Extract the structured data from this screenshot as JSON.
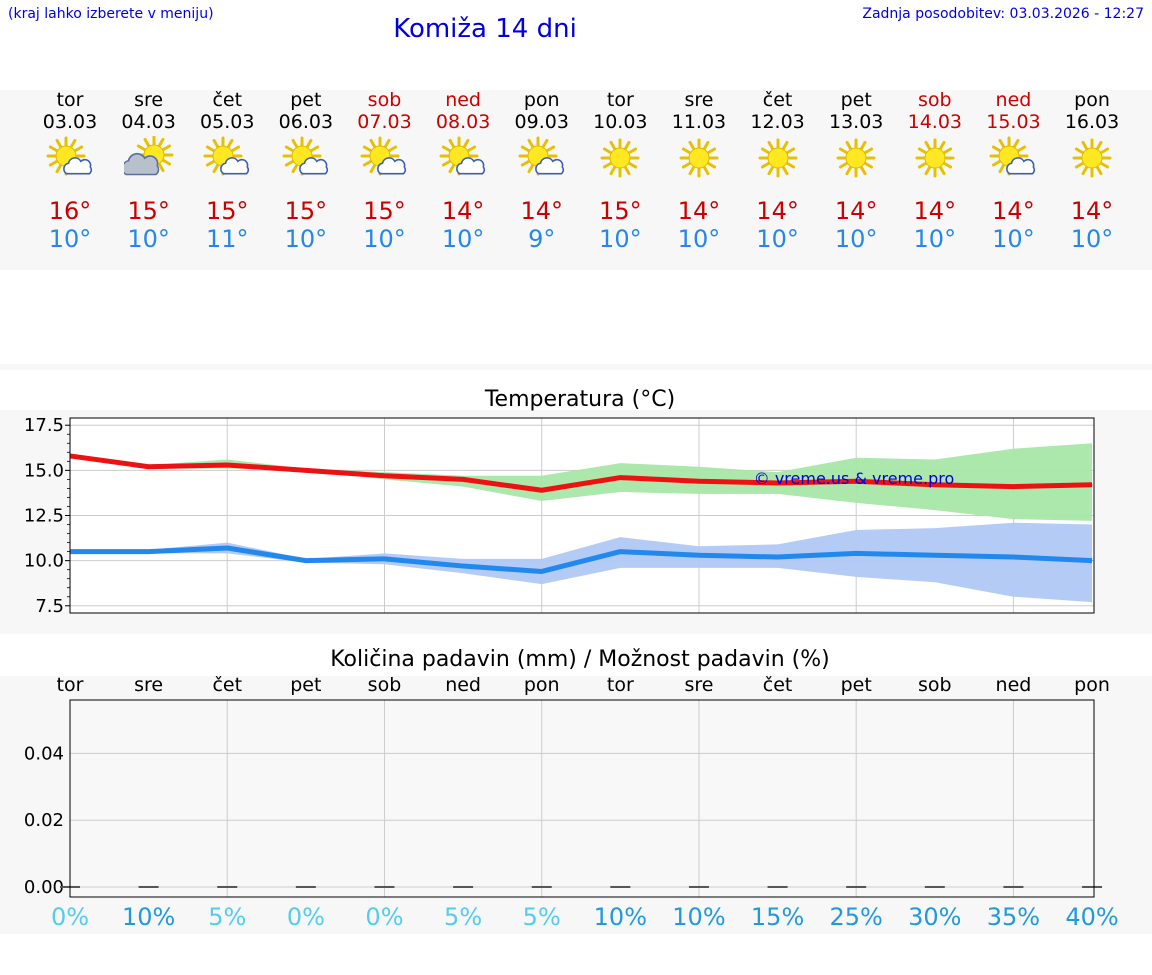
{
  "header": {
    "hint": "(kraj lahko izberete v meniju)",
    "title": "Komiža 14 dni",
    "updated": "Zadnja posodobitev: 03.03.2026 - 12:27"
  },
  "days": [
    {
      "name": "tor",
      "date": "03.03",
      "icon": "sun-cloud",
      "max": "16°",
      "min": "10°",
      "weekend": false
    },
    {
      "name": "sre",
      "date": "04.03",
      "icon": "cloud-sun",
      "max": "15°",
      "min": "10°",
      "weekend": false
    },
    {
      "name": "čet",
      "date": "05.03",
      "icon": "sun-cloud",
      "max": "15°",
      "min": "11°",
      "weekend": false
    },
    {
      "name": "pet",
      "date": "06.03",
      "icon": "sun-cloud",
      "max": "15°",
      "min": "10°",
      "weekend": false
    },
    {
      "name": "sob",
      "date": "07.03",
      "icon": "sun-cloud",
      "max": "15°",
      "min": "10°",
      "weekend": true
    },
    {
      "name": "ned",
      "date": "08.03",
      "icon": "sun-cloud",
      "max": "14°",
      "min": "10°",
      "weekend": true
    },
    {
      "name": "pon",
      "date": "09.03",
      "icon": "sun-cloud",
      "max": "14°",
      "min": "9°",
      "weekend": false
    },
    {
      "name": "tor",
      "date": "10.03",
      "icon": "sun",
      "max": "15°",
      "min": "10°",
      "weekend": false
    },
    {
      "name": "sre",
      "date": "11.03",
      "icon": "sun",
      "max": "14°",
      "min": "10°",
      "weekend": false
    },
    {
      "name": "čet",
      "date": "12.03",
      "icon": "sun",
      "max": "14°",
      "min": "10°",
      "weekend": false
    },
    {
      "name": "pet",
      "date": "13.03",
      "icon": "sun",
      "max": "14°",
      "min": "10°",
      "weekend": false
    },
    {
      "name": "sob",
      "date": "14.03",
      "icon": "sun",
      "max": "14°",
      "min": "10°",
      "weekend": true
    },
    {
      "name": "ned",
      "date": "15.03",
      "icon": "sun-cloud",
      "max": "14°",
      "min": "10°",
      "weekend": true
    },
    {
      "name": "pon",
      "date": "16.03",
      "icon": "sun",
      "max": "14°",
      "min": "10°",
      "weekend": false
    }
  ],
  "colors": {
    "max_line": "#ee1111",
    "min_line": "#2288ee",
    "max_band": "#a8e6a8",
    "min_band": "#b0c8f4",
    "title": "#0000dd",
    "weekend": "#cc0000",
    "pct_light": "#55ccee",
    "pct_dark": "#2299dd",
    "watermark": "#0000dd"
  },
  "chart_data": [
    {
      "type": "line",
      "title": "Temperatura (°C)",
      "x": [
        0,
        1,
        2,
        3,
        4,
        5,
        6,
        7,
        8,
        9,
        10,
        11,
        12,
        13
      ],
      "ylim": [
        7.1,
        17.9
      ],
      "yticks": [
        "7.5",
        "10.0",
        "12.5",
        "15.0",
        "17.5"
      ],
      "ytick_values": [
        7.5,
        10.0,
        12.5,
        15.0,
        17.5
      ],
      "watermark": "© vreme.us & vreme.pro",
      "series": [
        {
          "name": "max",
          "values": [
            15.8,
            15.2,
            15.3,
            15.0,
            14.7,
            14.5,
            13.9,
            14.6,
            14.4,
            14.3,
            14.4,
            14.2,
            14.1,
            14.2
          ],
          "band_low": [
            15.7,
            15.1,
            15.1,
            15.0,
            14.5,
            14.1,
            13.3,
            13.8,
            13.7,
            13.7,
            13.2,
            12.8,
            12.3,
            12.2
          ],
          "band_high": [
            15.9,
            15.3,
            15.6,
            15.1,
            14.9,
            14.7,
            14.7,
            15.4,
            15.2,
            14.9,
            15.7,
            15.6,
            16.2,
            16.5
          ]
        },
        {
          "name": "min",
          "values": [
            10.5,
            10.5,
            10.7,
            10.0,
            10.1,
            9.7,
            9.4,
            10.5,
            10.3,
            10.2,
            10.4,
            10.3,
            10.2,
            10.0
          ],
          "band_low": [
            10.5,
            10.4,
            10.4,
            9.9,
            9.8,
            9.3,
            8.7,
            9.6,
            9.6,
            9.6,
            9.1,
            8.8,
            8.0,
            7.7
          ],
          "band_high": [
            10.6,
            10.6,
            11.0,
            10.1,
            10.4,
            10.1,
            10.1,
            11.3,
            10.8,
            10.9,
            11.7,
            11.8,
            12.1,
            12.0
          ]
        }
      ]
    },
    {
      "type": "bar",
      "title": "Količina padavin (mm) / Možnost padavin (%)",
      "categories": [
        "tor",
        "sre",
        "čet",
        "pet",
        "sob",
        "ned",
        "pon",
        "tor",
        "sre",
        "čet",
        "pet",
        "sob",
        "ned",
        "pon"
      ],
      "values": [
        0,
        0,
        0,
        0,
        0,
        0,
        0,
        0,
        0,
        0,
        0,
        0,
        0,
        0
      ],
      "ylim": [
        -0.003,
        0.056
      ],
      "yticks": [
        "0.00",
        "0.02",
        "0.04"
      ],
      "ytick_values": [
        0.0,
        0.02,
        0.04
      ],
      "probability_labels": [
        "0%",
        "10%",
        "5%",
        "0%",
        "0%",
        "5%",
        "5%",
        "10%",
        "10%",
        "15%",
        "25%",
        "30%",
        "35%",
        "40%"
      ]
    }
  ]
}
